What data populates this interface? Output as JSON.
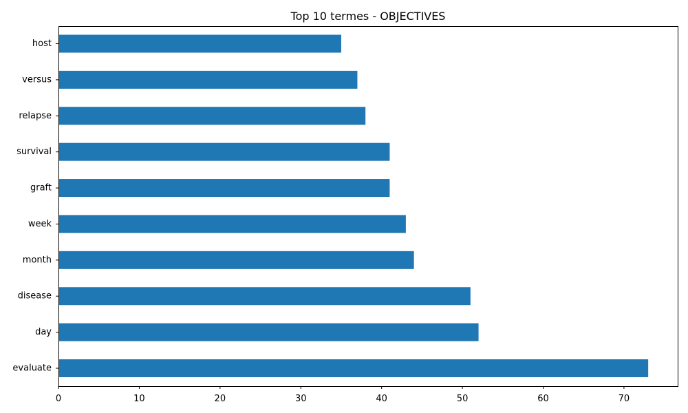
{
  "chart_data": {
    "type": "bar",
    "orientation": "horizontal",
    "title": "Top 10 termes - OBJECTIVES",
    "xlabel": "",
    "ylabel": "",
    "categories": [
      "host",
      "versus",
      "relapse",
      "survival",
      "graft",
      "week",
      "month",
      "disease",
      "day",
      "evaluate"
    ],
    "values": [
      35,
      37,
      38,
      41,
      41,
      43,
      44,
      51,
      52,
      73
    ],
    "xlim": [
      0,
      76.65
    ],
    "xticks": [
      0,
      10,
      20,
      30,
      40,
      50,
      60,
      70
    ],
    "grid": false,
    "legend": "none",
    "bar_color": "#1f77b4"
  }
}
